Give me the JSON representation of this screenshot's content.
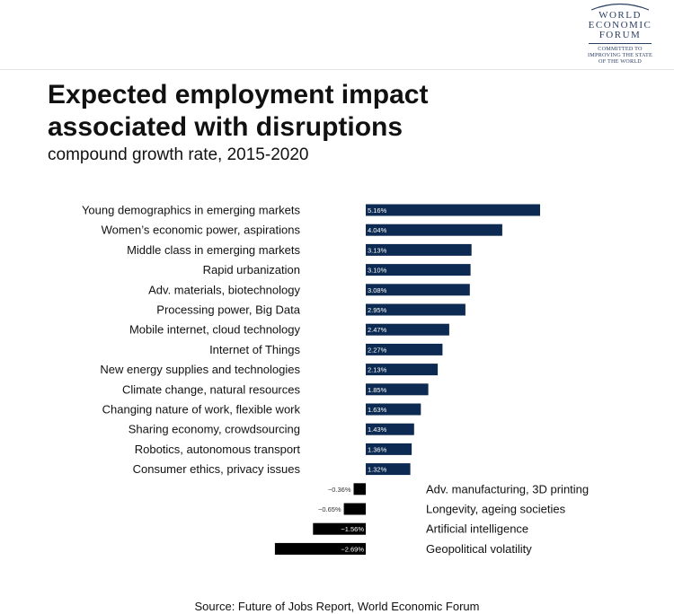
{
  "logo": {
    "lines": [
      "WORLD",
      "ECONOMIC",
      "FORUM"
    ],
    "tagline": [
      "COMMITTED TO",
      "IMPROVING THE STATE",
      "OF THE WORLD"
    ]
  },
  "title": "Expected employment impact associated with disruptions",
  "subtitle": "compound growth rate, 2015-2020",
  "source": "Source: Future of Jobs Report, World Economic Forum",
  "colors": {
    "positive": "#0d2b52",
    "negative": "#000000",
    "text": "#111111"
  },
  "chart_data": {
    "type": "bar",
    "orientation": "horizontal",
    "categories": [
      "Young demographics in emerging markets",
      "Women’s economic power, aspirations",
      "Middle class in emerging markets",
      "Rapid urbanization",
      "Adv. materials, biotechnology",
      "Processing power, Big Data",
      "Mobile internet, cloud technology",
      "Internet of Things",
      "New energy supplies and technologies",
      "Climate change, natural resources",
      "Changing nature of work, flexible work",
      "Sharing economy, crowdsourcing",
      "Robotics, autonomous transport",
      "Consumer ethics, privacy issues",
      "Adv. manufacturing, 3D printing",
      "Longevity, ageing societies",
      "Artificial intelligence",
      "Geopolitical volatility"
    ],
    "values": [
      5.16,
      4.04,
      3.13,
      3.1,
      3.08,
      2.95,
      2.47,
      2.27,
      2.13,
      1.85,
      1.63,
      1.43,
      1.36,
      1.32,
      -0.36,
      -0.65,
      -1.56,
      -2.69
    ],
    "value_labels": [
      "5.16%",
      "4.04%",
      "3.13%",
      "3.10%",
      "3.08%",
      "2.95%",
      "2.47%",
      "2.27%",
      "2.13%",
      "1.85%",
      "1.63%",
      "1.43%",
      "1.36%",
      "1.32%",
      "−0.36%",
      "−0.65%",
      "−1.56%",
      "−2.69%"
    ],
    "unit": "%",
    "xlim": [
      -2.69,
      5.16
    ],
    "grid": false,
    "legend": "none"
  }
}
